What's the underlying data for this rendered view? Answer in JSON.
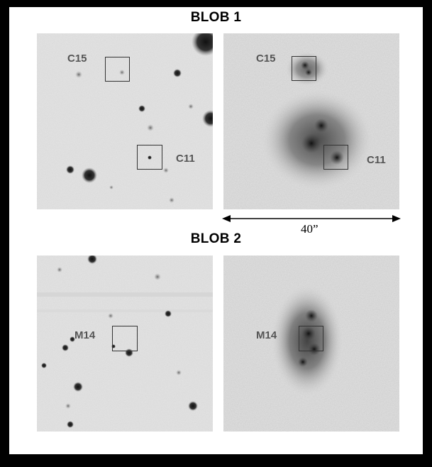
{
  "figure": {
    "blob1": {
      "title": "BLOB 1",
      "labels": {
        "c15_left": "C15",
        "c11_left": "C11",
        "c15_right": "C15",
        "c11_right": "C11"
      }
    },
    "scale_bar": {
      "label": "40”"
    },
    "blob2": {
      "title": "BLOB 2",
      "labels": {
        "m14_left": "M14",
        "m14_right": "M14"
      }
    }
  }
}
